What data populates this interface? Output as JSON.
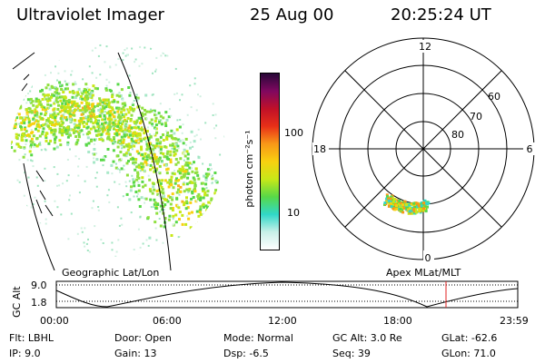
{
  "header": {
    "instrument": "Ultraviolet Imager",
    "date": "25 Aug 00",
    "time": "20:25:24 UT"
  },
  "left_panel": {
    "caption": "Geographic Lat/Lon"
  },
  "colorbar": {
    "unit_label": "photon cm⁻²s⁻¹",
    "ticks": [
      {
        "label": "100",
        "value": 100
      },
      {
        "label": "10",
        "value": 10
      }
    ],
    "scale": "log",
    "colors": [
      "#ffffff",
      "#c8f0e8",
      "#30d8c8",
      "#58d848",
      "#c8e818",
      "#f8d010",
      "#f89818",
      "#e83018",
      "#c01028",
      "#800860",
      "#280838"
    ]
  },
  "polar_plot": {
    "caption": "Apex MLat/MLT",
    "mlt_labels": {
      "top": "12",
      "left": "18",
      "right": "6",
      "bottom": "0"
    },
    "lat_labels": [
      "60",
      "70",
      "80"
    ]
  },
  "timeline": {
    "ylabel": "GC Alt",
    "y_ticks": [
      "9.0",
      "1.8"
    ],
    "x_ticks": [
      "00:00",
      "06:00",
      "12:00",
      "18:00",
      "23:59"
    ],
    "current_marker_color": "#e02020"
  },
  "info": {
    "flt": "Flt: LBHL",
    "ip": "IP: 9.0",
    "door": "Door: Open",
    "gain": "Gain: 13",
    "mode": "Mode: Normal",
    "dsp": "Dsp: -6.5",
    "gc_alt": "GC Alt: 3.0 Re",
    "seq": "Seq: 39",
    "glat": "GLat: -62.6",
    "glon": "GLon: 71.0"
  }
}
